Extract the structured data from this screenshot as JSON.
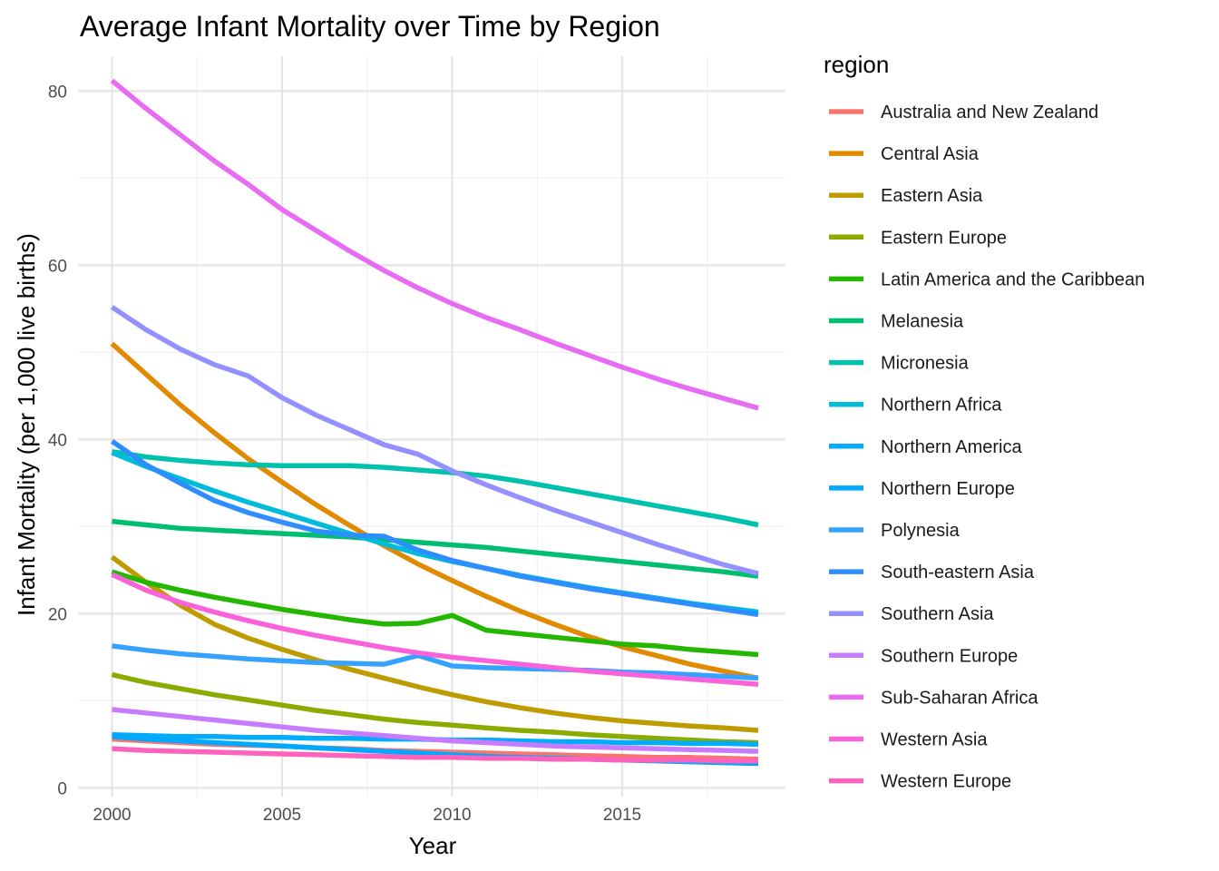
{
  "chart_data": {
    "type": "line",
    "title": "Average Infant Mortality over Time by Region",
    "xlabel": "Year",
    "ylabel": "Infant Mortality (per 1,000 live births)",
    "xlim": [
      1999,
      2019.8
    ],
    "ylim": [
      -1,
      84
    ],
    "x_ticks": [
      2000,
      2005,
      2010,
      2015
    ],
    "y_ticks": [
      0,
      20,
      40,
      60,
      80
    ],
    "x_minor": [
      2002.5,
      2007.5,
      2012.5,
      2017.5
    ],
    "y_minor": [
      10,
      30,
      50,
      70
    ],
    "grid": true,
    "legend": {
      "title": "region",
      "position": "right"
    },
    "x": [
      2000,
      2001,
      2002,
      2003,
      2004,
      2005,
      2006,
      2007,
      2008,
      2009,
      2010,
      2011,
      2012,
      2013,
      2014,
      2015,
      2016,
      2017,
      2018,
      2019
    ],
    "series": [
      {
        "name": "Australia and New Zealand",
        "color": "#F8766D",
        "values": [
          5.6,
          5.4,
          5.2,
          5.0,
          4.9,
          4.8,
          4.6,
          4.5,
          4.3,
          4.2,
          4.1,
          4.0,
          3.9,
          3.8,
          3.7,
          3.6,
          3.5,
          3.5,
          3.4,
          3.3
        ]
      },
      {
        "name": "Central Asia",
        "color": "#E18A00",
        "values": [
          51,
          47.5,
          44,
          40.8,
          37.8,
          35.1,
          32.5,
          30.1,
          27.8,
          25.7,
          23.8,
          22.0,
          20.3,
          18.8,
          17.4,
          16.2,
          15.2,
          14.2,
          13.4,
          12.6
        ]
      },
      {
        "name": "Eastern Asia",
        "color": "#BE9C00",
        "values": [
          26.5,
          23.6,
          21.0,
          18.8,
          17.2,
          15.9,
          14.7,
          13.6,
          12.6,
          11.6,
          10.7,
          9.9,
          9.2,
          8.6,
          8.1,
          7.7,
          7.4,
          7.1,
          6.9,
          6.6
        ]
      },
      {
        "name": "Eastern Europe",
        "color": "#8CAB00",
        "values": [
          13.0,
          12.1,
          11.4,
          10.7,
          10.1,
          9.5,
          8.9,
          8.4,
          7.9,
          7.5,
          7.2,
          6.9,
          6.6,
          6.4,
          6.1,
          5.9,
          5.7,
          5.5,
          5.3,
          5.2
        ]
      },
      {
        "name": "Latin America and the Caribbean",
        "color": "#24B700",
        "values": [
          24.8,
          23.6,
          22.7,
          21.9,
          21.2,
          20.5,
          19.9,
          19.3,
          18.8,
          18.9,
          19.8,
          18.1,
          17.7,
          17.3,
          16.9,
          16.5,
          16.3,
          15.9,
          15.6,
          15.3
        ]
      },
      {
        "name": "Melanesia",
        "color": "#00BE70",
        "values": [
          30.6,
          30.2,
          29.8,
          29.6,
          29.4,
          29.2,
          29.0,
          28.8,
          28.5,
          28.2,
          27.9,
          27.6,
          27.2,
          26.8,
          26.4,
          26.0,
          25.6,
          25.2,
          24.8,
          24.3
        ]
      },
      {
        "name": "Micronesia",
        "color": "#00C1AB",
        "values": [
          38.6,
          38.0,
          37.6,
          37.3,
          37.1,
          37.0,
          37.0,
          37.0,
          36.8,
          36.5,
          36.2,
          35.8,
          35.2,
          34.5,
          33.8,
          33.1,
          32.4,
          31.7,
          31.0,
          30.2
        ]
      },
      {
        "name": "Northern Africa",
        "color": "#00BBDA",
        "values": [
          38.5,
          36.9,
          35.5,
          34.1,
          32.8,
          31.6,
          30.4,
          29.2,
          28.0,
          26.9,
          26.0,
          25.2,
          24.4,
          23.7,
          23.0,
          22.4,
          21.8,
          21.2,
          20.7,
          20.2
        ]
      },
      {
        "name": "Northern America",
        "color": "#00ACFC",
        "values": [
          6.1,
          6.0,
          5.9,
          5.9,
          5.8,
          5.8,
          5.7,
          5.7,
          5.6,
          5.6,
          5.5,
          5.5,
          5.4,
          5.3,
          5.3,
          5.2,
          5.2,
          5.1,
          5.1,
          5.0
        ]
      },
      {
        "name": "Northern Europe",
        "color": "#00A9FF",
        "values": [
          5.9,
          5.6,
          5.4,
          5.2,
          5.0,
          4.8,
          4.6,
          4.4,
          4.2,
          4.0,
          3.8,
          3.6,
          3.5,
          3.4,
          3.3,
          3.2,
          3.1,
          3.0,
          2.9,
          2.8
        ]
      },
      {
        "name": "Polynesia",
        "color": "#35A2FF",
        "values": [
          16.3,
          15.8,
          15.4,
          15.1,
          14.8,
          14.6,
          14.4,
          14.3,
          14.2,
          15.2,
          14.0,
          13.8,
          13.7,
          13.6,
          13.5,
          13.3,
          13.2,
          13.0,
          12.8,
          12.6
        ]
      },
      {
        "name": "South-eastern Asia",
        "color": "#2E8DFF",
        "values": [
          39.8,
          37.1,
          35.0,
          33.0,
          31.6,
          30.5,
          29.5,
          29.0,
          28.9,
          27.3,
          26.1,
          25.2,
          24.3,
          23.6,
          22.9,
          22.3,
          21.7,
          21.1,
          20.5,
          19.9
        ]
      },
      {
        "name": "Southern Asia",
        "color": "#9590FF",
        "values": [
          55.2,
          52.6,
          50.4,
          48.6,
          47.3,
          44.8,
          42.8,
          41.1,
          39.4,
          38.3,
          36.4,
          34.8,
          33.3,
          31.9,
          30.6,
          29.3,
          28.0,
          26.8,
          25.6,
          24.6
        ]
      },
      {
        "name": "Southern Europe",
        "color": "#C77CFF",
        "values": [
          9.0,
          8.6,
          8.2,
          7.8,
          7.4,
          7.0,
          6.6,
          6.3,
          6.0,
          5.7,
          5.4,
          5.2,
          5.0,
          4.8,
          4.7,
          4.6,
          4.5,
          4.4,
          4.3,
          4.2
        ]
      },
      {
        "name": "Sub-Saharan Africa",
        "color": "#E76BF3",
        "values": [
          81.2,
          78.0,
          75.0,
          72.0,
          69.3,
          66.4,
          64.0,
          61.6,
          59.4,
          57.4,
          55.6,
          54.0,
          52.6,
          51.1,
          49.7,
          48.3,
          47.0,
          45.8,
          44.7,
          43.6
        ]
      },
      {
        "name": "Western Asia",
        "color": "#FA62DB",
        "values": [
          24.5,
          22.7,
          21.3,
          20.2,
          19.2,
          18.3,
          17.5,
          16.8,
          16.1,
          15.5,
          15.0,
          14.6,
          14.2,
          13.8,
          13.4,
          13.1,
          12.8,
          12.5,
          12.2,
          11.9
        ]
      },
      {
        "name": "Western Europe",
        "color": "#FF62BC",
        "values": [
          4.5,
          4.3,
          4.2,
          4.1,
          4.0,
          3.9,
          3.8,
          3.7,
          3.6,
          3.5,
          3.5,
          3.4,
          3.4,
          3.3,
          3.3,
          3.2,
          3.2,
          3.2,
          3.1,
          3.1
        ]
      }
    ]
  }
}
